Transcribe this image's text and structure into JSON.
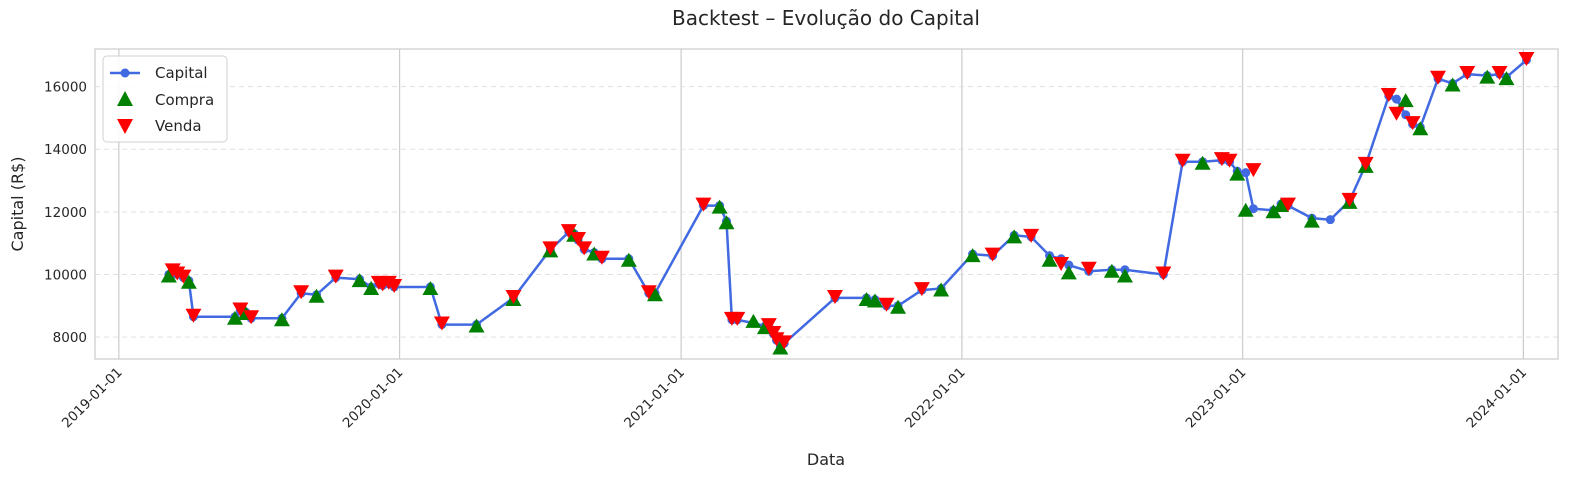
{
  "chart_data": {
    "type": "line",
    "title": "Backtest – Evolução do Capital",
    "xlabel": "Data",
    "ylabel": "Capital (R$)",
    "xlim": [
      "2018-12-01",
      "2024-02-15"
    ],
    "ylim": [
      7300,
      17200
    ],
    "x_ticks": [
      "2019-01-01",
      "2020-01-01",
      "2021-01-01",
      "2022-01-01",
      "2023-01-01",
      "2024-01-01"
    ],
    "y_ticks": [
      8000,
      10000,
      12000,
      14000,
      16000
    ],
    "grid": {
      "vertical": true,
      "horizontal_dashed": true
    },
    "legend_position": "top-left",
    "colors": {
      "line": "#4169e1",
      "buy": "#008000",
      "sell": "#ff0000",
      "grid": "#cccccc",
      "frame": "#cccccc"
    },
    "series": [
      {
        "name": "Capital",
        "x": [
          "2019-03-07",
          "2019-03-12",
          "2019-03-18",
          "2019-03-26",
          "2019-04-02",
          "2019-04-08",
          "2019-06-01",
          "2019-06-08",
          "2019-06-15",
          "2019-06-22",
          "2019-08-01",
          "2019-08-26",
          "2019-09-15",
          "2019-10-10",
          "2019-11-10",
          "2019-11-25",
          "2019-12-05",
          "2019-12-10",
          "2019-12-18",
          "2019-12-25",
          "2020-02-10",
          "2020-02-25",
          "2020-04-10",
          "2020-05-28",
          "2020-07-15",
          "2020-08-08",
          "2020-08-15",
          "2020-08-20",
          "2020-08-28",
          "2020-09-10",
          "2020-09-20",
          "2020-10-25",
          "2020-11-20",
          "2020-11-28",
          "2021-01-30",
          "2021-02-20",
          "2021-03-01",
          "2021-03-08",
          "2021-03-15",
          "2021-04-05",
          "2021-04-20",
          "2021-04-25",
          "2021-05-01",
          "2021-05-05",
          "2021-05-10",
          "2021-05-15",
          "2021-07-20",
          "2021-08-30",
          "2021-09-10",
          "2021-09-25",
          "2021-10-10",
          "2021-11-10",
          "2021-12-05",
          "2022-01-15",
          "2022-02-10",
          "2022-03-10",
          "2022-04-01",
          "2022-04-25",
          "2022-05-10",
          "2022-05-20",
          "2022-06-15",
          "2022-07-15",
          "2022-08-01",
          "2022-09-20",
          "2022-10-15",
          "2022-11-10",
          "2022-12-05",
          "2022-12-15",
          "2022-12-25",
          "2023-01-05",
          "2023-01-15",
          "2023-02-10",
          "2023-02-20",
          "2023-03-01",
          "2023-04-01",
          "2023-04-25",
          "2023-05-20",
          "2023-06-10",
          "2023-07-10",
          "2023-07-20",
          "2023-08-01",
          "2023-08-10",
          "2023-08-20",
          "2023-09-12",
          "2023-10-01",
          "2023-10-20",
          "2023-11-15",
          "2023-12-01",
          "2023-12-10",
          "2024-01-05"
        ],
        "y": [
          10000,
          10100,
          10000,
          9900,
          9800,
          8650,
          8650,
          8850,
          8800,
          8600,
          8600,
          9400,
          9350,
          9900,
          9850,
          9600,
          9700,
          9650,
          9700,
          9600,
          9600,
          8400,
          8400,
          9250,
          10800,
          11350,
          11300,
          11100,
          10800,
          10700,
          10500,
          10500,
          9400,
          9400,
          12200,
          12200,
          11700,
          8550,
          8550,
          8450,
          8350,
          8350,
          8100,
          7900,
          7700,
          7800,
          9250,
          9250,
          9200,
          9000,
          9000,
          9500,
          9550,
          10650,
          10600,
          11250,
          11200,
          10600,
          10500,
          10300,
          10100,
          10150,
          10150,
          10000,
          13600,
          13600,
          13650,
          13600,
          13300,
          13250,
          12100,
          12050,
          12250,
          12200,
          11800,
          11750,
          12350,
          13500,
          15700,
          15600,
          15100,
          14800,
          14700,
          16250,
          16100,
          16400,
          16350,
          16400,
          16300,
          16850
        ]
      },
      {
        "name": "Compra",
        "x": [
          "2019-03-07",
          "2019-04-02",
          "2019-06-01",
          "2019-06-15",
          "2019-08-01",
          "2019-09-15",
          "2019-11-10",
          "2019-11-25",
          "2020-02-10",
          "2020-04-10",
          "2020-05-28",
          "2020-07-15",
          "2020-08-15",
          "2020-09-10",
          "2020-10-25",
          "2020-11-28",
          "2021-02-20",
          "2021-03-01",
          "2021-04-05",
          "2021-04-20",
          "2021-05-10",
          "2021-08-30",
          "2021-09-10",
          "2021-10-10",
          "2021-12-05",
          "2022-01-15",
          "2022-03-10",
          "2022-04-25",
          "2022-05-20",
          "2022-07-15",
          "2022-08-01",
          "2022-11-10",
          "2022-12-25",
          "2023-01-05",
          "2023-02-10",
          "2023-02-20",
          "2023-04-01",
          "2023-05-20",
          "2023-06-10",
          "2023-08-01",
          "2023-08-20",
          "2023-10-01",
          "2023-11-15",
          "2023-12-10"
        ],
        "y": [
          10000,
          9800,
          8650,
          8800,
          8600,
          9350,
          9850,
          9600,
          9600,
          8400,
          9250,
          10800,
          11300,
          10700,
          10500,
          9400,
          12200,
          11700,
          8550,
          8350,
          7700,
          9250,
          9200,
          9000,
          9550,
          10650,
          11250,
          10500,
          10100,
          10150,
          10000,
          13600,
          13250,
          12100,
          12050,
          12250,
          11750,
          12350,
          13500,
          15600,
          14700,
          16100,
          16350,
          16300
        ]
      },
      {
        "name": "Venda",
        "x": [
          "2019-03-12",
          "2019-03-18",
          "2019-03-26",
          "2019-04-08",
          "2019-06-08",
          "2019-06-22",
          "2019-08-26",
          "2019-10-10",
          "2019-12-05",
          "2019-12-10",
          "2019-12-18",
          "2019-12-25",
          "2020-02-25",
          "2020-05-28",
          "2020-07-15",
          "2020-08-08",
          "2020-08-20",
          "2020-08-28",
          "2020-09-20",
          "2020-11-20",
          "2021-01-30",
          "2021-03-08",
          "2021-03-15",
          "2021-04-25",
          "2021-05-01",
          "2021-05-05",
          "2021-05-15",
          "2021-07-20",
          "2021-09-25",
          "2021-11-10",
          "2022-02-10",
          "2022-04-01",
          "2022-05-10",
          "2022-06-15",
          "2022-09-20",
          "2022-10-15",
          "2022-12-05",
          "2022-12-15",
          "2023-01-15",
          "2023-03-01",
          "2023-05-20",
          "2023-06-10",
          "2023-07-10",
          "2023-07-20",
          "2023-08-10",
          "2023-09-12",
          "2023-10-20",
          "2023-12-01",
          "2024-01-05"
        ],
        "y": [
          10100,
          10000,
          9900,
          8650,
          8850,
          8600,
          9400,
          9900,
          9700,
          9650,
          9700,
          9600,
          8400,
          9250,
          10800,
          11350,
          11100,
          10800,
          10500,
          9400,
          12200,
          8550,
          8550,
          8350,
          8100,
          7900,
          7800,
          9250,
          9000,
          9500,
          10600,
          11200,
          10300,
          10150,
          10000,
          13600,
          13650,
          13600,
          13300,
          12200,
          12350,
          13500,
          15700,
          15100,
          14800,
          16250,
          16400,
          16400,
          16850
        ]
      }
    ]
  }
}
